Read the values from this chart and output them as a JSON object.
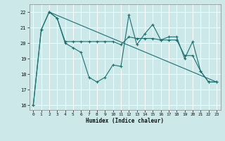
{
  "title": "",
  "xlabel": "Humidex (Indice chaleur)",
  "bg_color": "#cce8e8",
  "grid_color": "#ffffff",
  "line_color": "#1a7070",
  "xlim": [
    -0.5,
    23.5
  ],
  "ylim": [
    15.7,
    22.5
  ],
  "yticks": [
    16,
    17,
    18,
    19,
    20,
    21,
    22
  ],
  "xticks": [
    0,
    1,
    2,
    3,
    4,
    5,
    6,
    7,
    8,
    9,
    10,
    11,
    12,
    13,
    14,
    15,
    16,
    17,
    18,
    19,
    20,
    21,
    22,
    23
  ],
  "line1_x": [
    0,
    1,
    2,
    3,
    4,
    5,
    6,
    7,
    8,
    9,
    10,
    11,
    12,
    13,
    14,
    15,
    16,
    17,
    18,
    19,
    20,
    21,
    22,
    23
  ],
  "line1_y": [
    16.0,
    20.85,
    22.0,
    21.6,
    20.0,
    19.7,
    19.4,
    17.8,
    17.5,
    17.8,
    18.6,
    18.5,
    21.8,
    19.9,
    20.6,
    21.2,
    20.2,
    20.4,
    20.4,
    19.0,
    20.1,
    18.2,
    17.5,
    17.5
  ],
  "line2_x": [
    0,
    1,
    2,
    3,
    4,
    5,
    6,
    7,
    8,
    9,
    10,
    11,
    12,
    13,
    14,
    15,
    16,
    17,
    18,
    19,
    20,
    21,
    22,
    23
  ],
  "line2_y": [
    16.0,
    20.85,
    22.0,
    21.6,
    20.1,
    20.1,
    20.1,
    20.1,
    20.1,
    20.1,
    20.1,
    19.9,
    20.4,
    20.3,
    20.3,
    20.3,
    20.2,
    20.2,
    20.2,
    19.2,
    19.2,
    18.2,
    17.5,
    17.5
  ],
  "line3_x": [
    2,
    23
  ],
  "line3_y": [
    22.0,
    17.5
  ]
}
